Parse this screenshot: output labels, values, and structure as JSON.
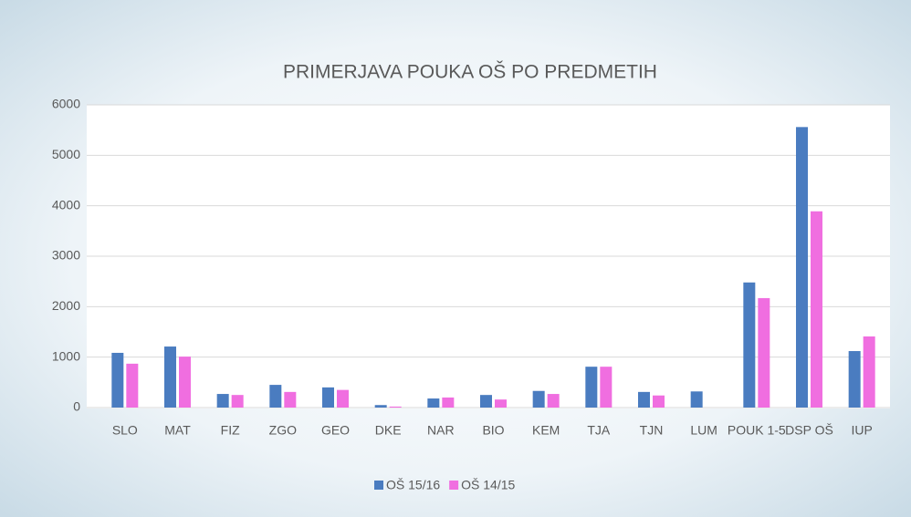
{
  "chart_data": {
    "type": "bar",
    "title": "PRIMERJAVA POUKA OŠ PO PREDMETIH",
    "categories": [
      "SLO",
      "MAT",
      "FIZ",
      "ZGO",
      "GEO",
      "DKE",
      "NAR",
      "BIO",
      "KEM",
      "TJA",
      "TJN",
      "LUM",
      "POUK 1-5",
      "DSP OŠ",
      "IUP"
    ],
    "series": [
      {
        "name": "OŠ 15/16",
        "color": "#4a7cc0",
        "values": [
          1085,
          1210,
          270,
          450,
          400,
          50,
          180,
          250,
          330,
          810,
          310,
          320,
          2480,
          5560,
          1120
        ]
      },
      {
        "name": "OŠ 14/15",
        "color": "#f06ee0",
        "values": [
          870,
          1010,
          250,
          310,
          350,
          20,
          200,
          160,
          270,
          810,
          240,
          0,
          2170,
          3890,
          1410
        ]
      }
    ],
    "ylim": [
      0,
      6000
    ],
    "yticks": [
      0,
      1000,
      2000,
      3000,
      4000,
      5000,
      6000
    ],
    "grid": true,
    "legend": "bottom"
  }
}
